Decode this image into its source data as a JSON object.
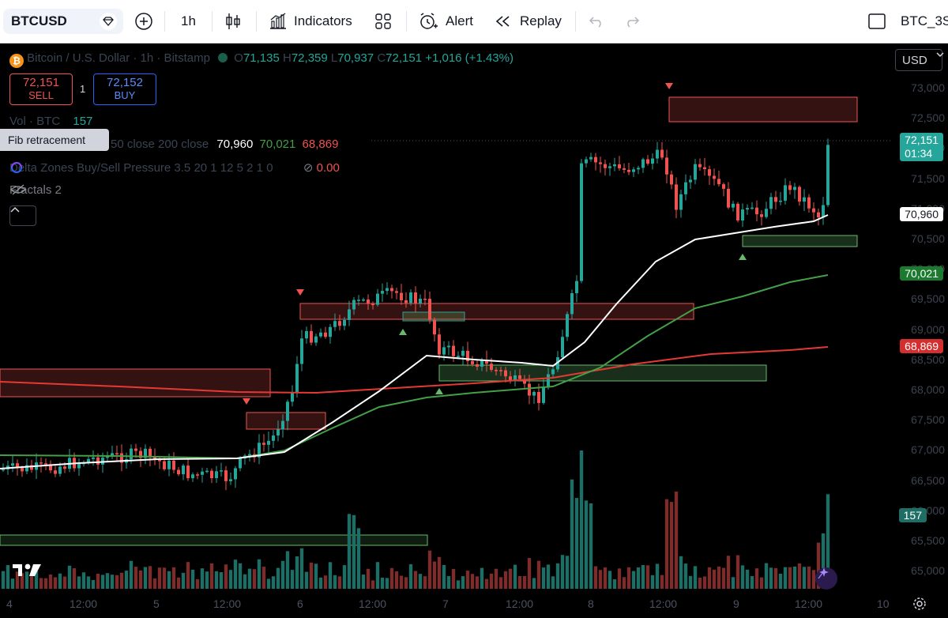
{
  "toolbar": {
    "symbol": "BTCUSD",
    "interval": "1h",
    "indicators_label": "Indicators",
    "alert_label": "Alert",
    "replay_label": "Replay",
    "layout_name": "BTC_3S"
  },
  "legend": {
    "title": "Bitcoin / U.S. Dollar · 1h · Bitstamp",
    "o_label": "O",
    "open": "71,135",
    "h_label": "H",
    "high": "72,359",
    "l_label": "L",
    "low": "70,937",
    "c_label": "C",
    "close": "72,151",
    "change": "+1,016 (+1.43%)",
    "sell_price": "72,151",
    "sell_label": "SELL",
    "spread": "1",
    "buy_price": "72,152",
    "buy_label": "BUY",
    "vol_label": "Vol · BTC",
    "vol_value": "157",
    "tooltip": "Fib retracement",
    "ma_label": "50 close 200 close",
    "ma1": "70,960",
    "ma2": "70,021",
    "ma3": "68,869",
    "delta_label": "Delta Zones Buy/Sell Pressure 3.5 20 1 12 5 2 1 0",
    "delta_value": "0.00",
    "fractals_label": "Fractals 2"
  },
  "currency": "USD",
  "price_axis": {
    "ticks": [
      "73,000",
      "72,500",
      "72,000",
      "71,500",
      "71,000",
      "70,500",
      "70,000",
      "69,500",
      "69,000",
      "68,500",
      "68,000",
      "67,500",
      "67,000",
      "66,500",
      "66,000",
      "65,500",
      "65,000"
    ],
    "last_price": "72,151",
    "countdown": "01:34",
    "ma1_tag": "70,960",
    "ma2_tag": "70,021",
    "ma3_tag": "68,869",
    "vol_tag": "157"
  },
  "time_axis": [
    "4",
    "12:00",
    "5",
    "12:00",
    "6",
    "12:00",
    "7",
    "12:00",
    "8",
    "12:00",
    "9",
    "12:00",
    "10"
  ],
  "colors": {
    "up": "#26a69a",
    "down": "#ef5350",
    "ma_fast": "#ffffff",
    "ma_mid": "#43a047",
    "ma_slow": "#e53935",
    "bg": "#000000",
    "volume_up": "#1f6e66",
    "volume_down": "#7d2c2c"
  },
  "chart_data": {
    "type": "candlestick",
    "symbol": "BTCUSD",
    "timeframe": "1h",
    "ylim": [
      65000,
      73250
    ],
    "candles_approx": [
      {
        "t": "4 00:00",
        "o": 66950,
        "h": 67000,
        "l": 66880,
        "c": 66920
      },
      {
        "t": "4 12:00",
        "o": 67000,
        "h": 67350,
        "l": 66900,
        "c": 67150
      },
      {
        "t": "5 00:00",
        "o": 67150,
        "h": 67300,
        "l": 66900,
        "c": 67000
      },
      {
        "t": "5 12:00",
        "o": 66900,
        "h": 67050,
        "l": 66750,
        "c": 66950
      },
      {
        "t": "6 00:00",
        "o": 67300,
        "h": 69600,
        "l": 67200,
        "c": 69200
      },
      {
        "t": "6 12:00",
        "o": 69300,
        "h": 69900,
        "l": 69000,
        "c": 69500
      },
      {
        "t": "7 00:00",
        "o": 69400,
        "h": 69600,
        "l": 68500,
        "c": 68700
      },
      {
        "t": "7 12:00",
        "o": 68600,
        "h": 69000,
        "l": 67800,
        "c": 68200
      },
      {
        "t": "8 00:00",
        "o": 68800,
        "h": 72700,
        "l": 68600,
        "c": 71800
      },
      {
        "t": "8 12:00",
        "o": 71900,
        "h": 72000,
        "l": 70800,
        "c": 71200
      },
      {
        "t": "9 00:00",
        "o": 71100,
        "h": 71400,
        "l": 70700,
        "c": 70950
      },
      {
        "t": "9 12:00",
        "o": 71135,
        "h": 72359,
        "l": 70937,
        "c": 72151
      }
    ],
    "moving_averages": [
      {
        "name": "MA 50",
        "value": 70960,
        "color": "#ffffff"
      },
      {
        "name": "MA 100",
        "value": 70021,
        "color": "#43a047"
      },
      {
        "name": "MA 200",
        "value": 68869,
        "color": "#e53935"
      }
    ],
    "last_volume": 157
  }
}
